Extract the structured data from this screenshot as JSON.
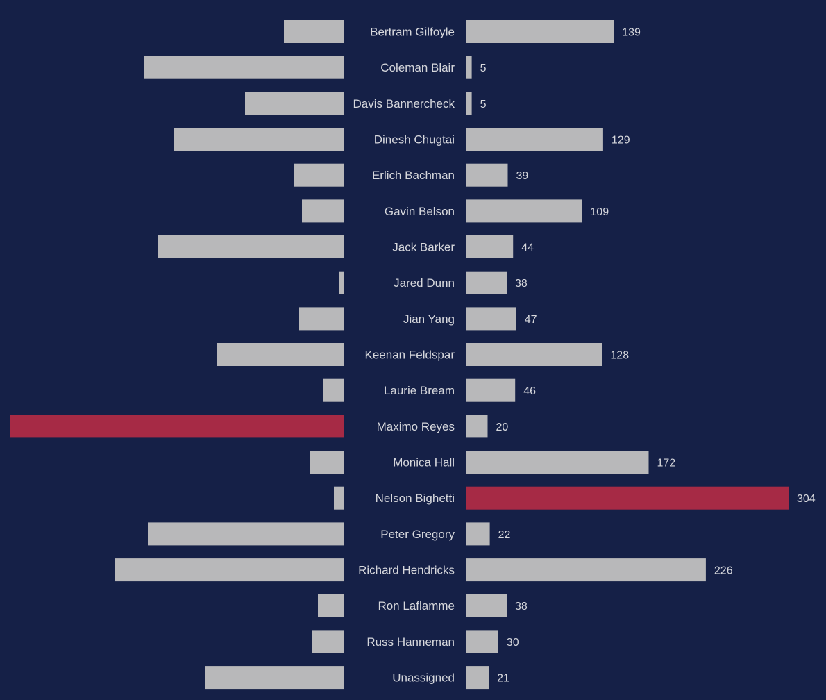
{
  "colors": {
    "background": "#152047",
    "bar_default": "#b8b8ba",
    "bar_highlight": "#a62a45",
    "text": "#d6d7dc"
  },
  "chart_data": {
    "type": "bar",
    "orientation": "horizontal",
    "layout": "diverging",
    "title": "",
    "xlabel": "",
    "ylabel": "",
    "grid": false,
    "legend": "none",
    "categories": [
      "Bertram Gilfoyle",
      "Coleman Blair",
      "Davis Bannercheck",
      "Dinesh Chugtai",
      "Erlich Bachman",
      "Gavin Belson",
      "Jack Barker",
      "Jared Dunn",
      "Jian Yang",
      "Keenan Feldspar",
      "Laurie Bream",
      "Maximo Reyes",
      "Monica Hall",
      "Nelson Bighetti",
      "Peter Gregory",
      "Richard Hendricks",
      "Ron Laflamme",
      "Russ Hanneman",
      "Unassigned"
    ],
    "series": [
      {
        "side": "left",
        "labels_shown": false,
        "values": [
          86,
          287,
          142,
          244,
          71,
          60,
          267,
          7,
          64,
          183,
          29,
          480,
          49,
          14,
          282,
          330,
          37,
          46,
          199
        ],
        "highlight": "Maximo Reyes"
      },
      {
        "side": "right",
        "labels_shown": true,
        "values": [
          139,
          5,
          5,
          129,
          39,
          109,
          44,
          38,
          47,
          128,
          46,
          20,
          172,
          304,
          22,
          226,
          38,
          30,
          21
        ],
        "highlight": "Nelson Bighetti"
      }
    ],
    "xlim_left": [
      0,
      480
    ],
    "xlim_right": [
      0,
      304
    ]
  }
}
